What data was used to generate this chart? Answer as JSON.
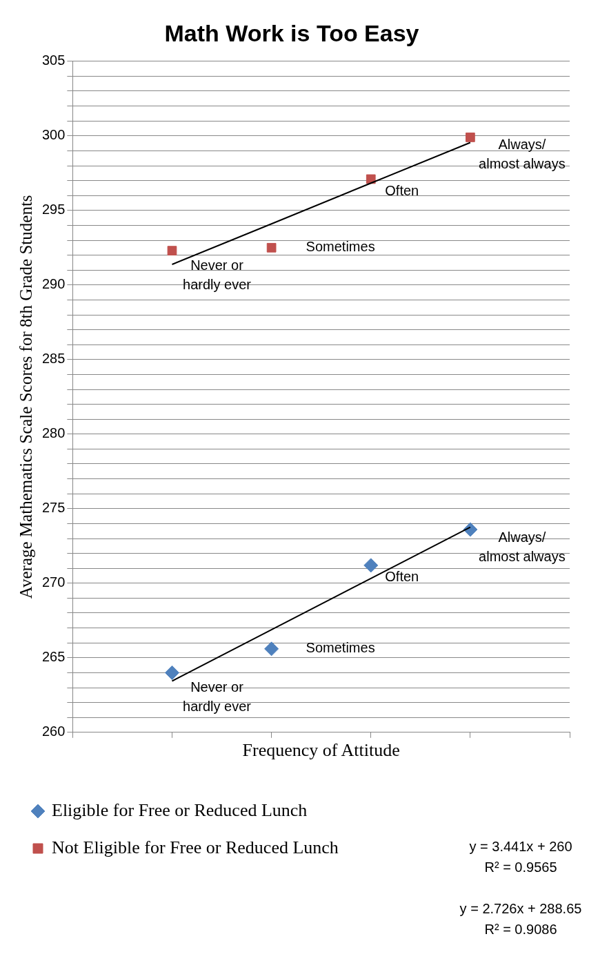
{
  "chart_data": {
    "type": "scatter",
    "title": "Math Work is Too Easy",
    "xlabel": "Frequency of Attitude",
    "ylabel": "Average Mathematics Scale Scores for 8th Grade Students",
    "categories": [
      null,
      null,
      null,
      null,
      null,
      null
    ],
    "series": [
      {
        "name": "Eligible for Free or Reduced Lunch",
        "color": "#4f81bd",
        "marker": "diamond",
        "values": [
          null,
          264.0,
          265.6,
          271.2,
          273.6,
          null
        ]
      },
      {
        "name": "Not Eligible for Free or Reduced Lunch",
        "color": "#c0504d",
        "marker": "square",
        "values": [
          null,
          292.3,
          292.5,
          297.1,
          299.9,
          null
        ]
      },
      {
        "type": "line",
        "color": "#000000",
        "marker": "none",
        "values": [
          null,
          263.44,
          266.88,
          270.32,
          273.76,
          null
        ]
      },
      {
        "type": "line",
        "color": "#000000",
        "marker": "none",
        "values": [
          null,
          291.38,
          294.1,
          296.83,
          299.55,
          null
        ]
      }
    ],
    "ylim": [
      260,
      305
    ],
    "yticks": [
      260,
      {
        "value": 261,
        "label": null
      },
      {
        "value": 262,
        "label": null
      },
      {
        "value": 263,
        "label": null
      },
      {
        "value": 264,
        "label": null
      },
      265,
      {
        "value": 266,
        "label": null
      },
      {
        "value": 267,
        "label": null
      },
      {
        "value": 268,
        "label": null
      },
      {
        "value": 269,
        "label": null
      },
      270,
      {
        "value": 271,
        "label": null
      },
      {
        "value": 272,
        "label": null
      },
      {
        "value": 273,
        "label": null
      },
      {
        "value": 274,
        "label": null
      },
      275,
      {
        "value": 276,
        "label": null
      },
      {
        "value": 277,
        "label": null
      },
      {
        "value": 278,
        "label": null
      },
      {
        "value": 279,
        "label": null
      },
      280,
      {
        "value": 281,
        "label": null
      },
      {
        "value": 282,
        "label": null
      },
      {
        "value": 283,
        "label": null
      },
      {
        "value": 284,
        "label": null
      },
      285,
      {
        "value": 286,
        "label": null
      },
      {
        "value": 287,
        "label": null
      },
      {
        "value": 288,
        "label": null
      },
      {
        "value": 289,
        "label": null
      },
      290,
      {
        "value": 291,
        "label": null
      },
      {
        "value": 292,
        "label": null
      },
      {
        "value": 293,
        "label": null
      },
      {
        "value": 294,
        "label": null
      },
      295,
      {
        "value": 296,
        "label": null
      },
      {
        "value": 297,
        "label": null
      },
      {
        "value": 298,
        "label": null
      },
      {
        "value": 299,
        "label": null
      },
      300,
      {
        "value": 301,
        "label": null
      },
      {
        "value": 302,
        "label": null
      },
      {
        "value": 303,
        "label": null
      },
      {
        "value": 304,
        "label": null
      },
      305
    ],
    "grid": "y",
    "tick_labels": "y",
    "legend": "bottom left",
    "annotations": [
      "Never or\nhardly ever",
      "Sometimes",
      "Often",
      "Always/\nalmost always",
      "Never or\nhardly ever",
      "Sometimes",
      "Often",
      "Always/\nalmost always",
      "y = 3.441x + 260",
      "R² = 0.9565",
      "y = 2.726x + 288.65",
      "R² = 0.9086"
    ]
  }
}
